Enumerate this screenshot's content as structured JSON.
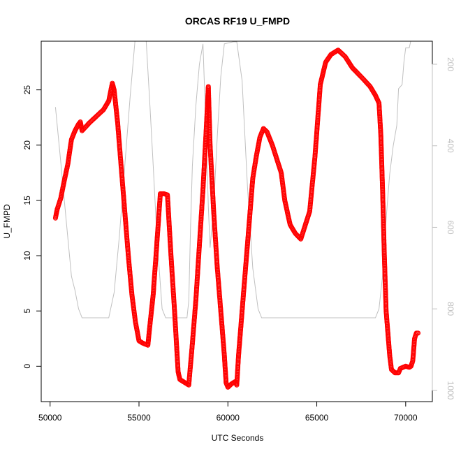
{
  "chart_data": {
    "type": "scatter",
    "title": "ORCAS RF19 U_FMPD",
    "xlabel": "UTC Seconds",
    "ylabel": "U_FMPD",
    "xlim": [
      49500,
      71500
    ],
    "ylim": [
      -3.2,
      29.4
    ],
    "xticks": [
      50000,
      55000,
      60000,
      65000,
      70000
    ],
    "yticks": [
      0,
      5,
      10,
      15,
      20,
      25
    ],
    "grid": false,
    "series": [
      {
        "marker": "open-circle",
        "color": "#ff0000",
        "points": [
          [
            50300,
            13.4
          ],
          [
            50400,
            14.2
          ],
          [
            50600,
            15.2
          ],
          [
            50800,
            16.8
          ],
          [
            51000,
            18.3
          ],
          [
            51200,
            20.5
          ],
          [
            51400,
            21.3
          ],
          [
            51600,
            21.9
          ],
          [
            51700,
            22.1
          ],
          [
            51800,
            21.3
          ],
          [
            52200,
            22.0
          ],
          [
            52600,
            22.6
          ],
          [
            53000,
            23.2
          ],
          [
            53300,
            24.0
          ],
          [
            53500,
            25.6
          ],
          [
            53600,
            25.0
          ],
          [
            53800,
            22.0
          ],
          [
            54000,
            18.0
          ],
          [
            54200,
            14.0
          ],
          [
            54400,
            10.0
          ],
          [
            54600,
            6.5
          ],
          [
            54800,
            4.0
          ],
          [
            55000,
            2.3
          ],
          [
            55200,
            2.1
          ],
          [
            55500,
            1.9
          ],
          [
            55600,
            3.5
          ],
          [
            55800,
            6.5
          ],
          [
            56000,
            11.0
          ],
          [
            56200,
            15.6
          ],
          [
            56400,
            15.6
          ],
          [
            56600,
            15.5
          ],
          [
            56800,
            10.0
          ],
          [
            57000,
            5.0
          ],
          [
            57200,
            -0.5
          ],
          [
            57300,
            -1.2
          ],
          [
            57500,
            -1.4
          ],
          [
            57800,
            -1.7
          ],
          [
            58000,
            2.0
          ],
          [
            58200,
            6.0
          ],
          [
            58400,
            11.0
          ],
          [
            58600,
            16.0
          ],
          [
            58800,
            22.0
          ],
          [
            58900,
            25.3
          ],
          [
            59000,
            20.0
          ],
          [
            59200,
            14.0
          ],
          [
            59400,
            9.0
          ],
          [
            59600,
            5.0
          ],
          [
            59800,
            1.0
          ],
          [
            59900,
            -1.5
          ],
          [
            60000,
            -1.9
          ],
          [
            60200,
            -1.6
          ],
          [
            60400,
            -1.4
          ],
          [
            60500,
            -1.7
          ],
          [
            60600,
            1.0
          ],
          [
            60800,
            5.0
          ],
          [
            61000,
            9.0
          ],
          [
            61200,
            13.0
          ],
          [
            61400,
            17.0
          ],
          [
            61600,
            19.0
          ],
          [
            61800,
            20.7
          ],
          [
            62000,
            21.5
          ],
          [
            62200,
            21.2
          ],
          [
            62500,
            20.0
          ],
          [
            63000,
            17.5
          ],
          [
            63200,
            15.0
          ],
          [
            63500,
            12.8
          ],
          [
            63800,
            12.0
          ],
          [
            64100,
            11.5
          ],
          [
            64300,
            12.5
          ],
          [
            64600,
            14.0
          ],
          [
            64900,
            19.0
          ],
          [
            65200,
            25.5
          ],
          [
            65500,
            27.5
          ],
          [
            65800,
            28.2
          ],
          [
            66200,
            28.6
          ],
          [
            66600,
            28.0
          ],
          [
            67000,
            27.0
          ],
          [
            67600,
            26.0
          ],
          [
            68000,
            25.3
          ],
          [
            68300,
            24.5
          ],
          [
            68500,
            23.8
          ],
          [
            68600,
            21.0
          ],
          [
            68700,
            16.0
          ],
          [
            68800,
            10.0
          ],
          [
            68900,
            5.0
          ],
          [
            69100,
            1.0
          ],
          [
            69200,
            -0.3
          ],
          [
            69400,
            -0.6
          ],
          [
            69600,
            -0.6
          ],
          [
            69700,
            -0.2
          ],
          [
            70000,
            0.0
          ],
          [
            70200,
            -0.1
          ],
          [
            70300,
            0.0
          ],
          [
            70400,
            0.5
          ],
          [
            70500,
            2.5
          ],
          [
            70600,
            3.0
          ],
          [
            70700,
            3.0
          ]
        ]
      },
      {
        "name": "",
        "axis": "right",
        "color": "#c0c0c0",
        "style": "line",
        "points": [
          [
            50300,
            305
          ],
          [
            50600,
            440
          ],
          [
            50900,
            580
          ],
          [
            51200,
            720
          ],
          [
            51400,
            755
          ],
          [
            51600,
            800
          ],
          [
            51800,
            822
          ],
          [
            53300,
            822
          ],
          [
            53600,
            760
          ],
          [
            53900,
            620
          ],
          [
            54200,
            450
          ],
          [
            54500,
            280
          ],
          [
            54800,
            130
          ],
          [
            55000,
            140
          ],
          [
            55400,
            140
          ],
          [
            55600,
            290
          ],
          [
            55800,
            450
          ],
          [
            56000,
            620
          ],
          [
            56300,
            800
          ],
          [
            56500,
            822
          ],
          [
            57700,
            822
          ],
          [
            57800,
            780
          ],
          [
            57900,
            600
          ],
          [
            58000,
            450
          ],
          [
            58200,
            300
          ],
          [
            58400,
            200
          ],
          [
            58600,
            150
          ],
          [
            58800,
            400
          ],
          [
            58900,
            550
          ],
          [
            59000,
            650
          ],
          [
            59200,
            550
          ],
          [
            59400,
            380
          ],
          [
            59600,
            230
          ],
          [
            59800,
            150
          ],
          [
            60300,
            145
          ],
          [
            60500,
            145
          ],
          [
            60800,
            240
          ],
          [
            61100,
            500
          ],
          [
            61400,
            700
          ],
          [
            61700,
            800
          ],
          [
            61900,
            822
          ],
          [
            68300,
            822
          ],
          [
            68500,
            800
          ],
          [
            68700,
            720
          ],
          [
            68900,
            580
          ],
          [
            69100,
            470
          ],
          [
            69300,
            400
          ],
          [
            69500,
            350
          ],
          [
            69600,
            260
          ],
          [
            69800,
            250
          ],
          [
            69900,
            195
          ],
          [
            70000,
            160
          ],
          [
            70200,
            160
          ],
          [
            70300,
            140
          ]
        ]
      }
    ],
    "right_axis": {
      "ylim": [
        1027.5,
        143.5
      ],
      "yticks": [
        200,
        400,
        600,
        800,
        1000
      ],
      "label": ""
    }
  }
}
